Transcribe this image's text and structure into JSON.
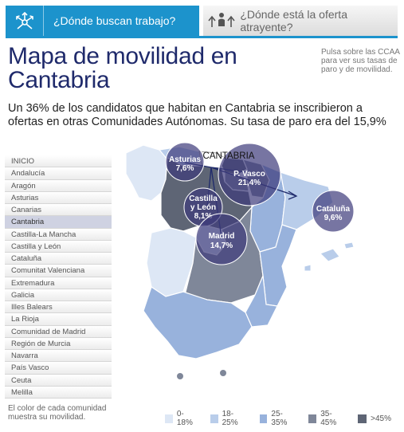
{
  "tabs": [
    {
      "label": "¿Dónde buscan trabajo?",
      "icon": "arrows-out-icon",
      "active": true
    },
    {
      "label": "¿Dónde está la oferta atrayente?",
      "icon": "people-in-icon",
      "active": false
    }
  ],
  "title": "Mapa de movilidad en Cantabria",
  "side_note": "Pulsa sobre las CCAA para ver sus tasas de paro y de movilidad.",
  "summary": "Un 36% de los candidatos que habitan en Cantabria se inscribieron a ofertas en otras Comunidades Autónomas. Su tasa de paro era del 15,9%",
  "menu": [
    "INICIO",
    "Andalucía",
    "Aragón",
    "Asturias",
    "Canarias",
    "Cantabria",
    "Castilla-La Mancha",
    "Castilla y León",
    "Cataluña",
    "Comunitat Valenciana",
    "Extremadura",
    "Galicia",
    "Illes Balears",
    "La Rioja",
    "Comunidad de Madrid",
    "Región de Murcia",
    "Navarra",
    "País Vasco",
    "Ceuta",
    "Melilla"
  ],
  "selected_menu": "Cantabria",
  "legend_note": "El color de cada comunidad muestra su movilidad.",
  "legend": [
    {
      "label": "0-18%",
      "color": "#dde7f5"
    },
    {
      "label": "18-25%",
      "color": "#b9cdea"
    },
    {
      "label": "25-35%",
      "color": "#98b2dc"
    },
    {
      "label": "35-45%",
      "color": "#7f8799"
    },
    {
      "label": ">45%",
      "color": "#5e6575"
    }
  ],
  "map": {
    "origin_label": "CANTABRIA",
    "bubbles": [
      {
        "name": "Asturias",
        "value": "7,6%"
      },
      {
        "name": "P. Vasco",
        "value": "21,4%"
      },
      {
        "name": "Castilla y León",
        "value": "8,1%"
      },
      {
        "name": "Madrid",
        "value": "14,7%"
      },
      {
        "name": "Cataluña",
        "value": "9,6%"
      }
    ],
    "bubble_color": "#3d3a7a"
  }
}
